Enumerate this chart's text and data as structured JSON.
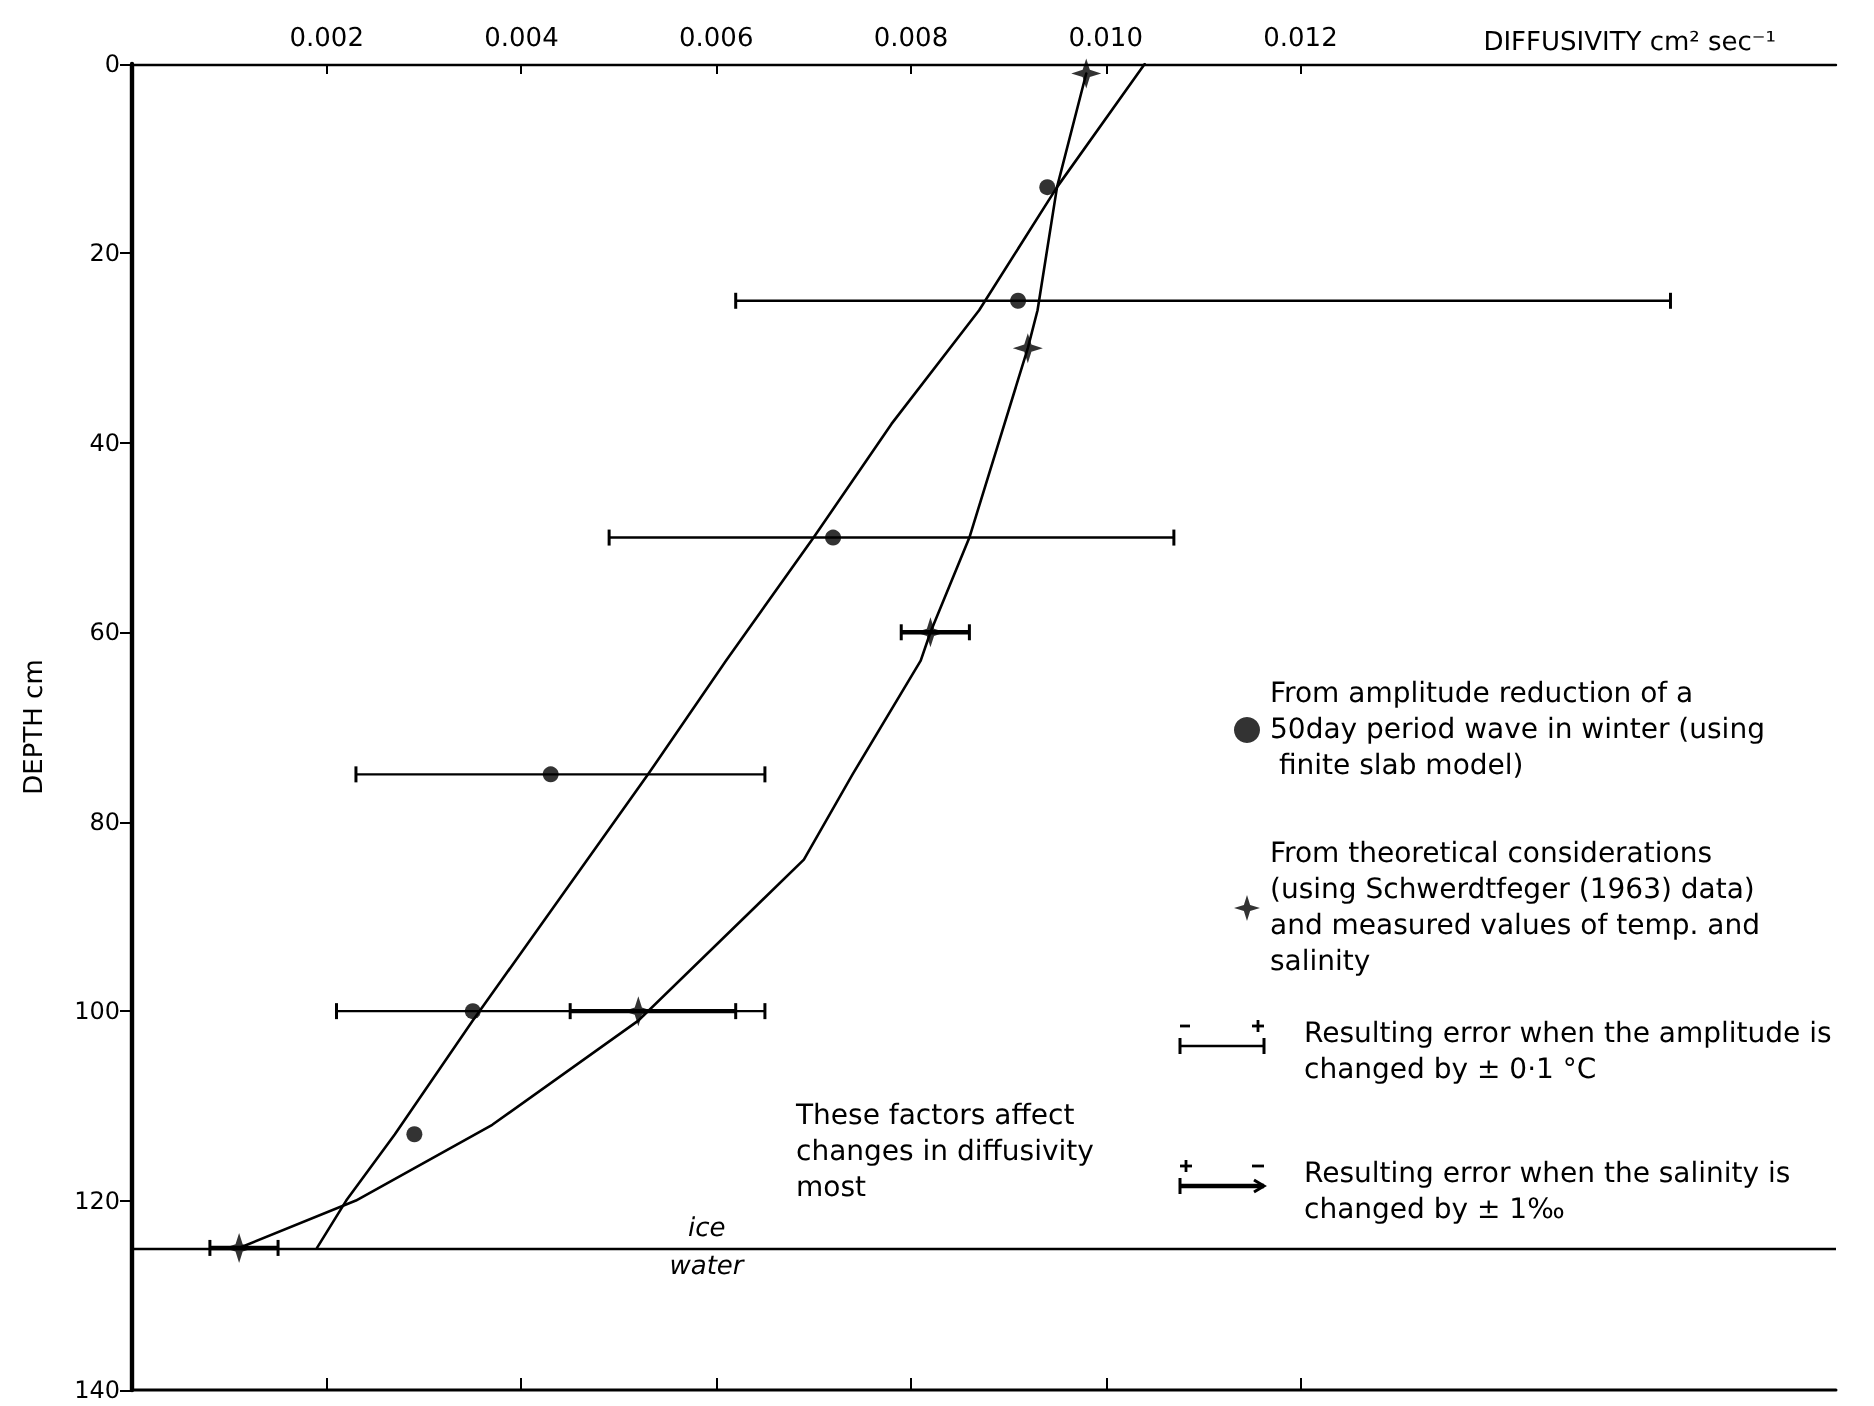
{
  "chart_data": {
    "type": "scatter",
    "xlabel": "DIFFUSIVITY cm² sec⁻¹",
    "ylabel": "DEPTH cm",
    "xlim": [
      0,
      0.0175
    ],
    "xticks": [
      0.002,
      0.004,
      0.006,
      0.008,
      {
        "value": 0.01,
        "label": "0.010"
      },
      0.012
    ],
    "ylim": [
      140,
      0
    ],
    "yticks": [
      0,
      20,
      40,
      60,
      80,
      100,
      120,
      140
    ],
    "grid": false,
    "legend": "right",
    "series": [
      {
        "name": "From amplitude reduction of a 50day period wave in winter (using finite slab model)",
        "marker": "circle",
        "color": "#000000",
        "x": [
          0.0094,
          0.0091,
          0.0072,
          0.0043,
          0.0035,
          0.0029
        ],
        "values": [
          13,
          25,
          50,
          75,
          100,
          113
        ],
        "xerrors": [
          null,
          [
            0.0062,
            0.0158
          ],
          [
            0.0049,
            0.0107
          ],
          [
            0.0023,
            0.0065
          ],
          [
            0.0021,
            0.0065
          ],
          null
        ]
      },
      {
        "name": "From theoretical considerations (using Schwerdtfeger (1963) data) and measured values of temp. and salinity",
        "marker": "star",
        "color": "#000000",
        "x": [
          0.0098,
          0.0092,
          0.0082,
          0.0052,
          0.0011
        ],
        "values": [
          1,
          30,
          60,
          100,
          125
        ],
        "xerrors": [
          null,
          null,
          [
            0.0079,
            0.0086
          ],
          [
            0.0045,
            0.0062
          ],
          [
            0.0008,
            0.0015
          ]
        ]
      },
      {
        "type": "line",
        "marker": "none",
        "line_style": "solid",
        "color": "#000000",
        "x": [
          0.0104,
          0.0095,
          0.0087,
          0.0078,
          0.007,
          0.0061,
          0.0053,
          0.0044,
          0.0035,
          0.0027,
          0.0022,
          0.0019
        ],
        "values": [
          0,
          13,
          26,
          38,
          50,
          63,
          75,
          88,
          101,
          113,
          120,
          125
        ]
      },
      {
        "type": "line",
        "marker": "none",
        "line_style": "solid",
        "color": "#000000",
        "x": [
          0.0098,
          0.0095,
          0.0093,
          0.0092,
          0.0089,
          0.0086,
          0.0082,
          0.0081,
          0.0074,
          0.0069,
          0.0064,
          0.0052,
          0.0037,
          0.0023,
          0.0011
        ],
        "values": [
          1,
          13,
          26,
          30,
          40,
          50,
          60,
          63,
          75,
          84,
          89,
          101,
          112,
          120,
          125
        ]
      }
    ],
    "ref_lines": [
      {
        "axis": "y",
        "value": 125,
        "label": "ice",
        "color": "#000000"
      }
    ],
    "annotations": [
      {
        "text": "water",
        "x": 0.0059,
        "y": 125
      },
      "Resulting error when the amplitude is changed by ± 0·1 °C",
      "Resulting error when the salinity is changed by ± 1‰",
      "These factors affect changes in diffusivity most"
    ]
  }
}
